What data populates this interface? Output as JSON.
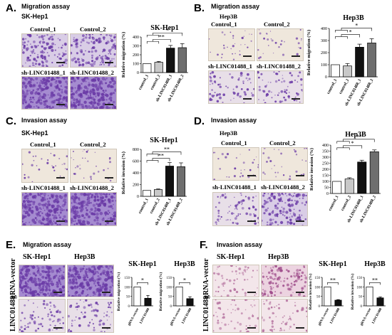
{
  "panels": {
    "A": {
      "label": "A.",
      "title": "Migration assay",
      "cell_line": "SK-Hep1",
      "img_labels": [
        "Control_1",
        "Control_2",
        "sh-LINC01488_1",
        "sh-LINC01488_2"
      ]
    },
    "B": {
      "label": "B.",
      "title": "Migration assay",
      "cell_line": "Hep3B",
      "img_labels": [
        "Control_1",
        "Control_2",
        "sh-LINC01488_1",
        "sh-LINC01488_2"
      ]
    },
    "C": {
      "label": "C.",
      "title": "Invasion assay",
      "cell_line": "SK-Hep1",
      "img_labels": [
        "Control_1",
        "Control_2",
        "sh-LINC01488_1",
        "sh-LINC01488_2"
      ]
    },
    "D": {
      "label": "D.",
      "title": "Invasion assay",
      "cell_line": "Hep3B",
      "img_labels": [
        "Control_1",
        "Control_2",
        "sh-LINC01488_1",
        "sh-LINC01488_2"
      ]
    },
    "E": {
      "label": "E.",
      "title": "Migration assay",
      "col_labels": [
        "SK-Hep1",
        "Hep3B"
      ],
      "row_labels": [
        "gRNA-vector",
        "LINC01488"
      ]
    },
    "F": {
      "label": "F.",
      "title": "Invasion assay",
      "col_labels": [
        "SK-Hep1",
        "Hep3B"
      ],
      "row_labels": [
        "gRNA-vector",
        "LINC01488"
      ]
    }
  },
  "colors": {
    "stain": "#6a3aa6",
    "stain_light": "#a58bd0",
    "bg_light": "#efe7dc",
    "bar_white": "#ffffff",
    "bar_light_gray": "#c8c8c8",
    "bar_black": "#111111",
    "bar_dark_gray": "#6e6e6e"
  },
  "chart_data": [
    {
      "id": "A",
      "type": "bar",
      "title": "SK-Hep1",
      "ylabel": "Relative migration (%)",
      "ylim": [
        0,
        400
      ],
      "yticks": [
        "0",
        "100",
        "200",
        "300",
        "400"
      ],
      "categories": [
        "control_1",
        "control_2",
        "sh-LINC01488_1",
        "sh-LINC01488_2"
      ],
      "values": [
        100,
        115,
        275,
        280
      ],
      "errors": [
        0,
        10,
        30,
        45
      ],
      "colors": [
        "#ffffff",
        "#c8c8c8",
        "#111111",
        "#6e6e6e"
      ],
      "significance": [
        {
          "text": "**"
        },
        {
          "text": "*"
        }
      ]
    },
    {
      "id": "B",
      "type": "bar",
      "title": "Hep3B",
      "ylabel": "Relative migration (%)",
      "ylim": [
        0,
        400
      ],
      "yticks": [
        "0",
        "100",
        "200",
        "300",
        "400"
      ],
      "categories": [
        "control_1",
        "control_2",
        "sh-LINC01488_1",
        "sh-LINC01488_2"
      ],
      "values": [
        100,
        90,
        245,
        280
      ],
      "errors": [
        0,
        20,
        25,
        35
      ],
      "colors": [
        "#ffffff",
        "#c8c8c8",
        "#111111",
        "#6e6e6e"
      ],
      "significance": [
        {
          "text": "*"
        },
        {
          "text": "*"
        }
      ]
    },
    {
      "id": "C",
      "type": "bar",
      "title": "SK-Hep1",
      "ylabel": "Relative invasion (%)",
      "ylim": [
        0,
        800
      ],
      "yticks": [
        "0",
        "200",
        "400",
        "600",
        "800"
      ],
      "categories": [
        "control_1",
        "control_2",
        "sh-LINC01488_1",
        "sh-LINC01488_2"
      ],
      "values": [
        100,
        115,
        515,
        505
      ],
      "errors": [
        0,
        10,
        60,
        65
      ],
      "colors": [
        "#ffffff",
        "#c8c8c8",
        "#111111",
        "#6e6e6e"
      ],
      "significance": [
        {
          "text": "**"
        },
        {
          "text": "**"
        }
      ]
    },
    {
      "id": "D",
      "type": "bar",
      "title": "Hep3B",
      "ylabel": "Relative invasion (%)",
      "ylim": [
        0,
        400
      ],
      "yticks": [
        "0",
        "50",
        "100",
        "150",
        "200",
        "250",
        "300",
        "350",
        "400"
      ],
      "categories": [
        "control_1",
        "control_2",
        "sh-LINC01488_1",
        "sh-LINC01488_2"
      ],
      "values": [
        100,
        120,
        260,
        345
      ],
      "errors": [
        0,
        10,
        15,
        15
      ],
      "colors": [
        "#ffffff",
        "#c8c8c8",
        "#111111",
        "#6e6e6e"
      ],
      "significance": [
        {
          "text": "*"
        },
        {
          "text": "**"
        }
      ]
    },
    {
      "id": "E1",
      "type": "bar",
      "title": "SK-Hep1",
      "ylabel": "Relative migration (%)",
      "ylim": [
        0,
        150
      ],
      "yticks": [
        "0",
        "50",
        "100",
        "150"
      ],
      "categories": [
        "gRNA-vector",
        "LINC01488"
      ],
      "values": [
        100,
        40
      ],
      "errors": [
        0,
        15
      ],
      "colors": [
        "#ffffff",
        "#111111"
      ],
      "significance": [
        {
          "text": "*"
        }
      ]
    },
    {
      "id": "E2",
      "type": "bar",
      "title": "Hep3B",
      "ylabel": "Relative migration (%)",
      "ylim": [
        0,
        150
      ],
      "yticks": [
        "0",
        "50",
        "100",
        "150"
      ],
      "categories": [
        "gRNA-vector",
        "LINC01488"
      ],
      "values": [
        100,
        38
      ],
      "errors": [
        0,
        10
      ],
      "colors": [
        "#ffffff",
        "#111111"
      ],
      "significance": [
        {
          "text": "*"
        }
      ]
    },
    {
      "id": "F1",
      "type": "bar",
      "title": "SK-Hep1",
      "ylabel": "Relative invasion (%)",
      "ylim": [
        0,
        150
      ],
      "yticks": [
        "0",
        "50",
        "100",
        "150"
      ],
      "categories": [
        "gRNA-vector",
        "LINC01488"
      ],
      "values": [
        100,
        30
      ],
      "errors": [
        0,
        3
      ],
      "colors": [
        "#ffffff",
        "#111111"
      ],
      "significance": [
        {
          "text": "**"
        }
      ]
    },
    {
      "id": "F2",
      "type": "bar",
      "title": "Hep3B",
      "ylabel": "Relative invasion (%)",
      "ylim": [
        0,
        150
      ],
      "yticks": [
        "0",
        "50",
        "100",
        "150"
      ],
      "categories": [
        "gRNA-vector",
        "LINC01488"
      ],
      "values": [
        100,
        42
      ],
      "errors": [
        0,
        5
      ],
      "colors": [
        "#ffffff",
        "#111111"
      ],
      "significance": [
        {
          "text": "**"
        }
      ]
    }
  ]
}
